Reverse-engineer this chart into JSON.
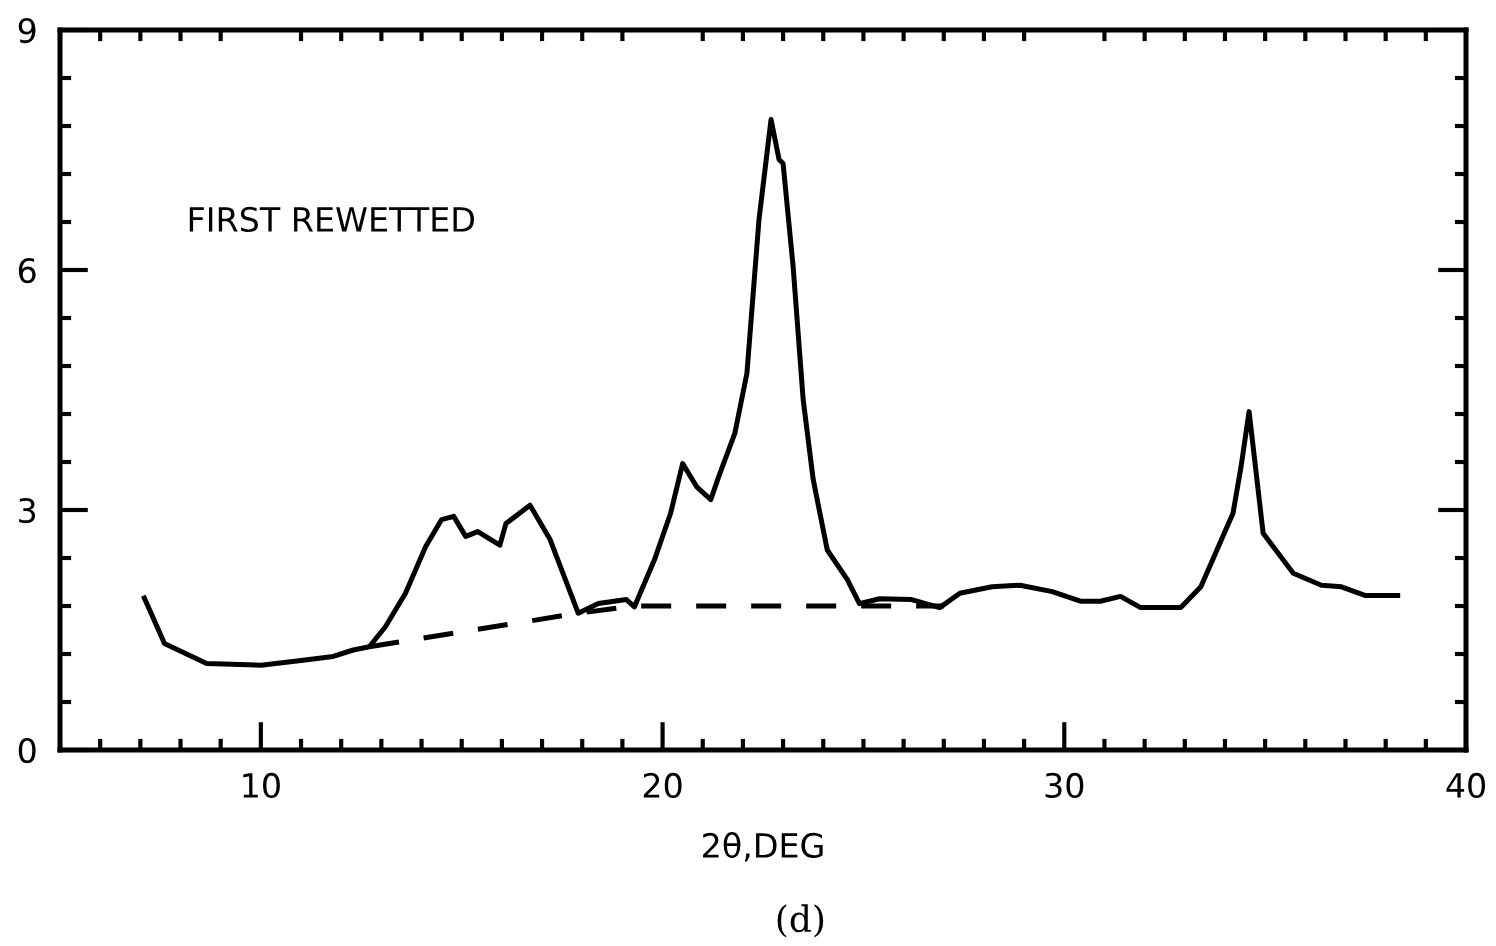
{
  "chart_data": {
    "type": "line",
    "xlabel": "2θ,DEG",
    "annotations": [
      "FIRST REWETTED",
      "(d)"
    ],
    "xlim": [
      5,
      40
    ],
    "ylim": [
      0,
      9
    ],
    "xticks": [
      10,
      20,
      30,
      40
    ],
    "yticks": [
      0,
      3,
      6,
      9
    ],
    "grid": false,
    "legend": false,
    "series": [
      {
        "color": "#000000",
        "line_style": "solid",
        "x": [
          7.1,
          7.6,
          8.65,
          10.0,
          11.0,
          11.8,
          12.3,
          12.7,
          13.1,
          13.6,
          14.1,
          14.5,
          14.8,
          15.1,
          15.4,
          15.95,
          16.1,
          16.7,
          17.2,
          17.9,
          18.4,
          19.1,
          19.3,
          19.8,
          20.2,
          20.5,
          20.85,
          21.2,
          21.4,
          21.8,
          22.1,
          22.4,
          22.7,
          22.9,
          23.0,
          23.25,
          23.5,
          23.75,
          24.1,
          24.6,
          24.9,
          25.4,
          26.2,
          26.9,
          27.4,
          28.2,
          28.9,
          29.7,
          30.4,
          30.9,
          31.4,
          31.9,
          32.9,
          33.4,
          33.8,
          34.2,
          34.4,
          34.6,
          34.95,
          35.7,
          36.4,
          36.9,
          37.5,
          38.3
        ],
        "values": [
          1.9,
          1.33,
          1.08,
          1.06,
          1.12,
          1.17,
          1.25,
          1.29,
          1.54,
          1.96,
          2.54,
          2.88,
          2.92,
          2.67,
          2.73,
          2.56,
          2.83,
          3.06,
          2.63,
          1.71,
          1.83,
          1.88,
          1.79,
          2.38,
          2.96,
          3.58,
          3.29,
          3.13,
          3.42,
          3.96,
          4.71,
          6.63,
          7.88,
          7.38,
          7.33,
          6.04,
          4.38,
          3.38,
          2.5,
          2.13,
          1.83,
          1.89,
          1.88,
          1.78,
          1.96,
          2.04,
          2.06,
          1.98,
          1.86,
          1.86,
          1.92,
          1.78,
          1.78,
          2.04,
          2.5,
          2.96,
          3.54,
          4.23,
          2.71,
          2.21,
          2.06,
          2.04,
          1.93,
          1.93
        ]
      },
      {
        "color": "#000000",
        "line_style": "dashed",
        "x": [
          12.7,
          17.9,
          19.3,
          27.0
        ],
        "values": [
          1.29,
          1.71,
          1.8,
          1.8
        ]
      }
    ]
  }
}
